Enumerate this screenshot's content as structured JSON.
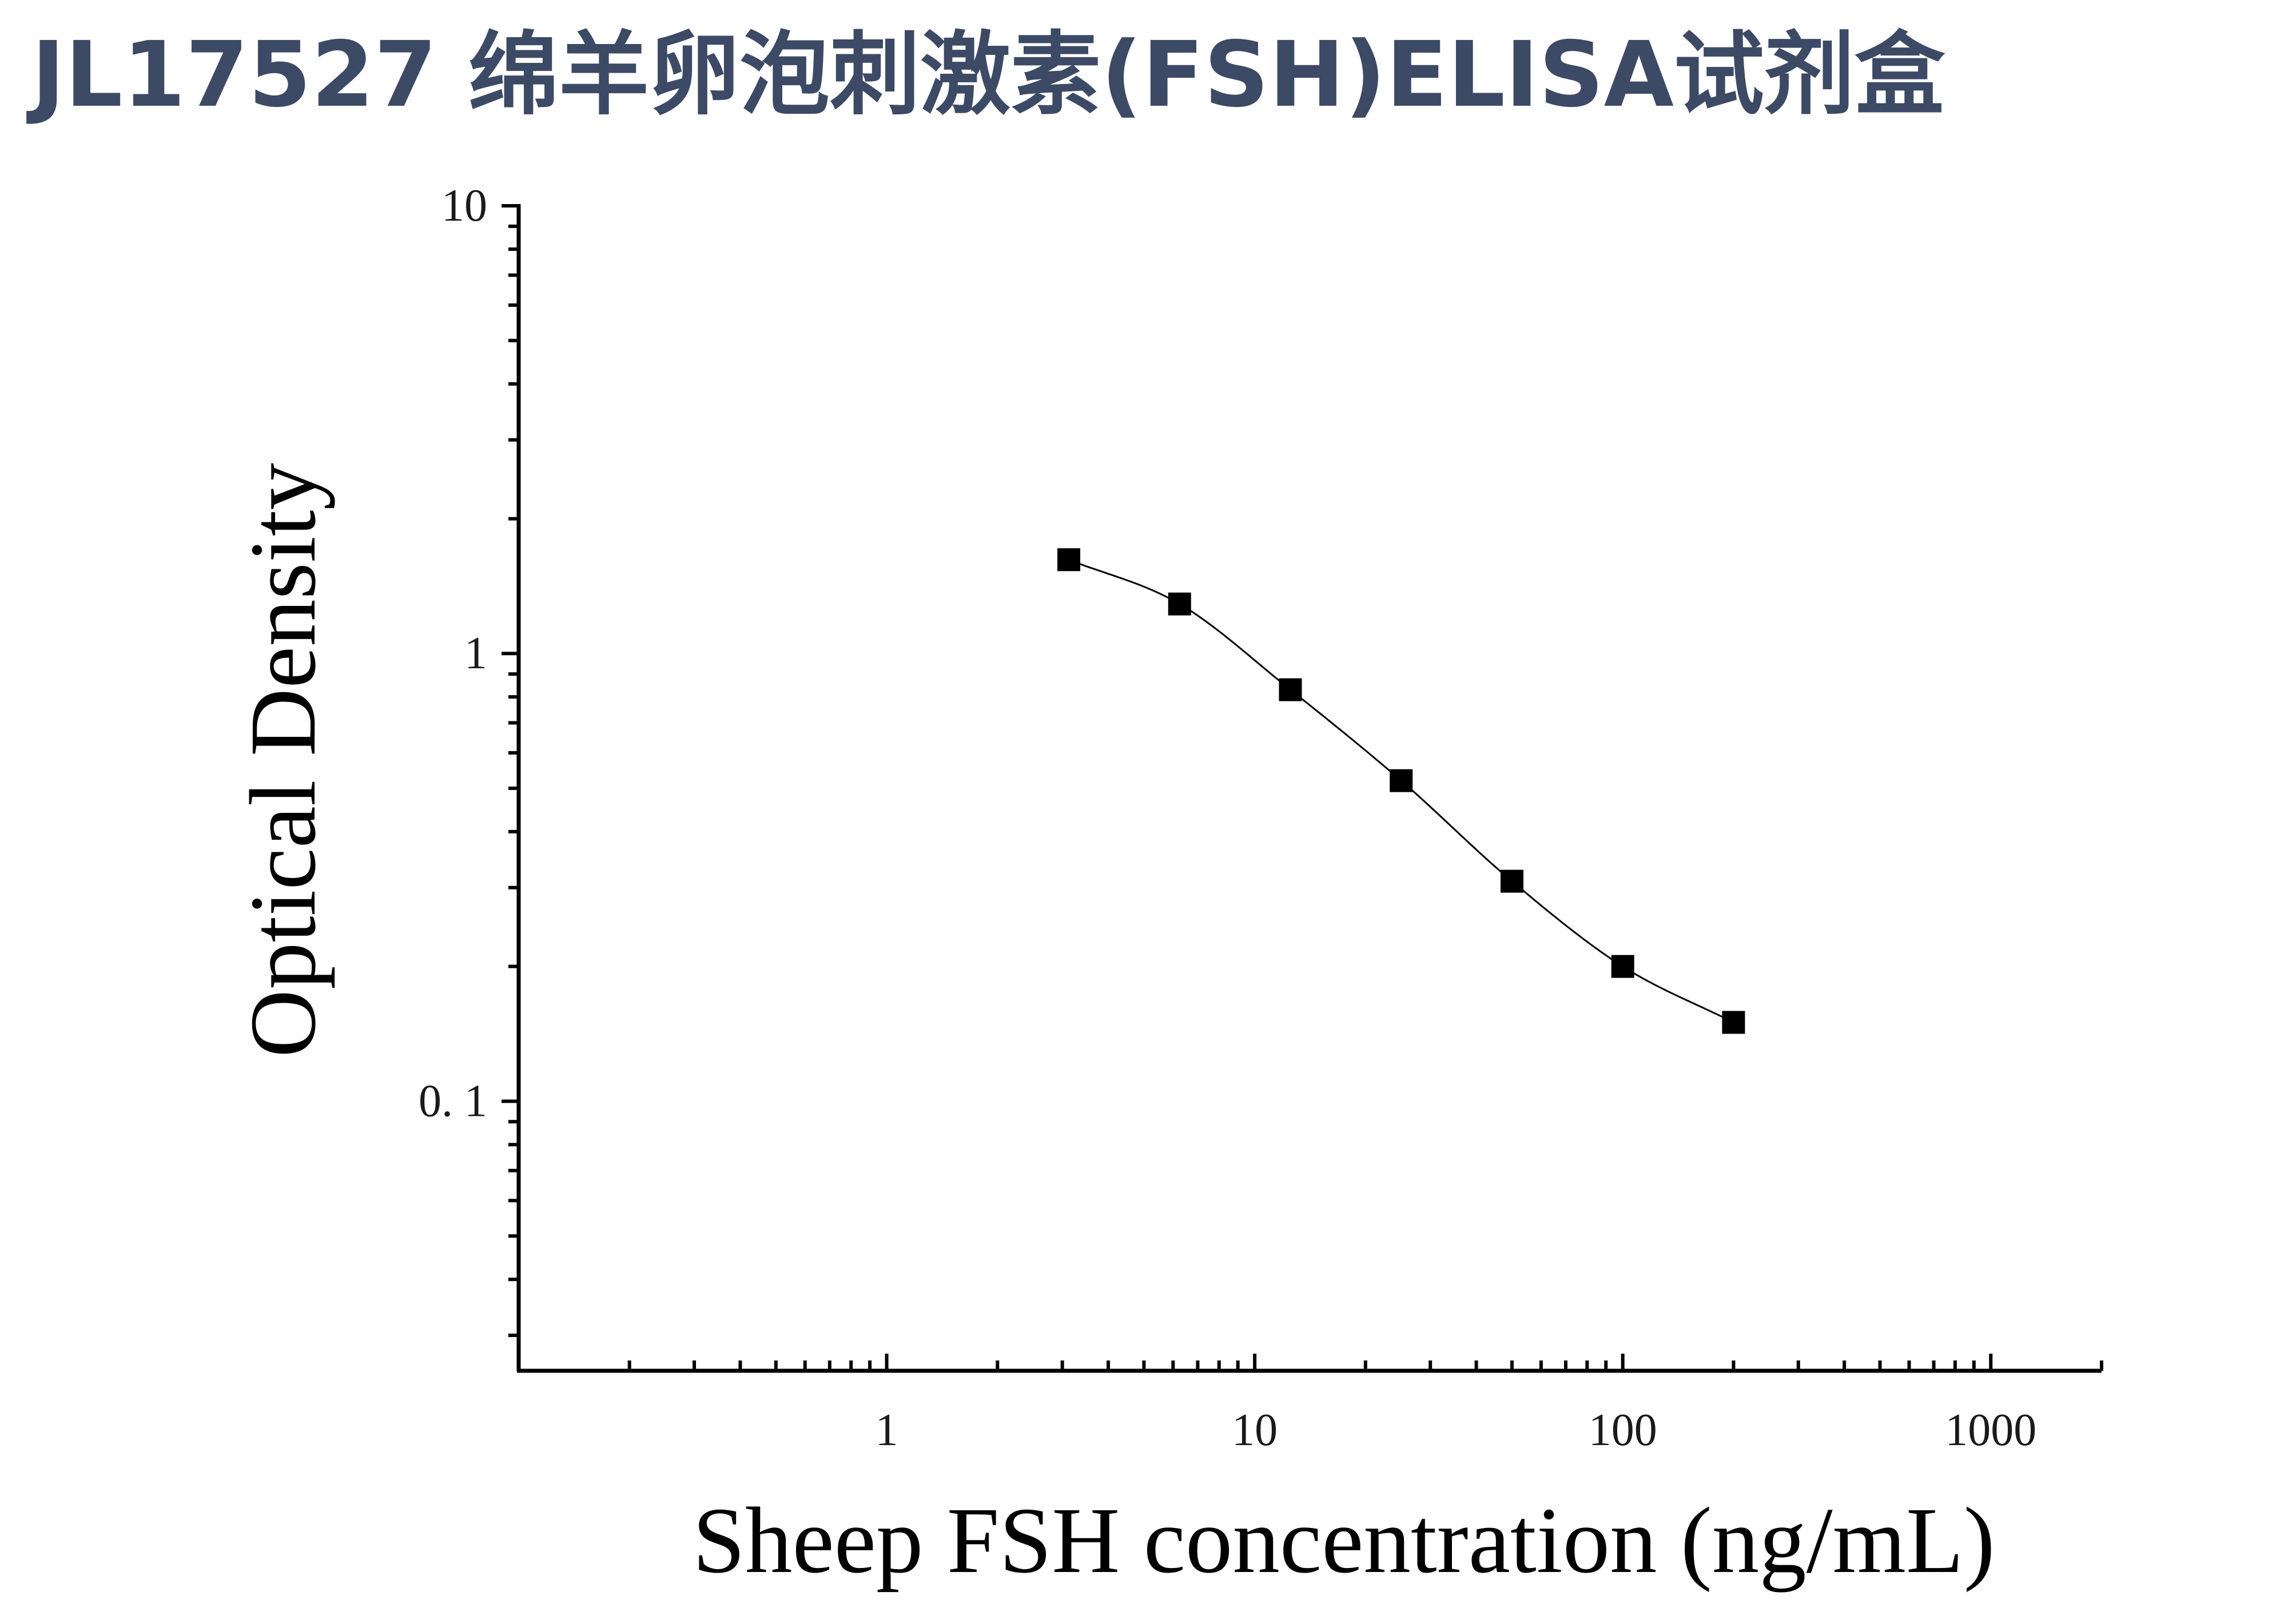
{
  "page": {
    "title": "JL17527 绵羊卵泡刺激素(FSH)ELISA试剂盒",
    "title_color": "#3d4a66"
  },
  "chart_data": {
    "type": "scatter",
    "title": "",
    "xlabel": "Sheep FSH concentration (ng/mL)",
    "ylabel": "Optical Density",
    "x_scale": "log",
    "y_scale": "log",
    "xlim": [
      0.1,
      2000
    ],
    "ylim": [
      0.025,
      10
    ],
    "x_ticks": [
      {
        "value": 1,
        "label": "1"
      },
      {
        "value": 10,
        "label": "10"
      },
      {
        "value": 100,
        "label": "100"
      },
      {
        "value": 1000,
        "label": "1000"
      }
    ],
    "y_ticks": [
      {
        "value": 10,
        "label": "10"
      },
      {
        "value": 1,
        "label": "1"
      },
      {
        "value": 0.1,
        "label": "0. 1"
      }
    ],
    "grid": false,
    "legend": "none",
    "marker": "square",
    "color": "#000000",
    "series": [
      {
        "points": [
          {
            "x": 3.125,
            "y": 1.62
          },
          {
            "x": 6.25,
            "y": 1.29
          },
          {
            "x": 12.5,
            "y": 0.83
          },
          {
            "x": 25,
            "y": 0.52
          },
          {
            "x": 50,
            "y": 0.31
          },
          {
            "x": 100,
            "y": 0.2
          },
          {
            "x": 200,
            "y": 0.15
          }
        ]
      }
    ],
    "fit_curve": "four-parameter logistic through the points"
  }
}
